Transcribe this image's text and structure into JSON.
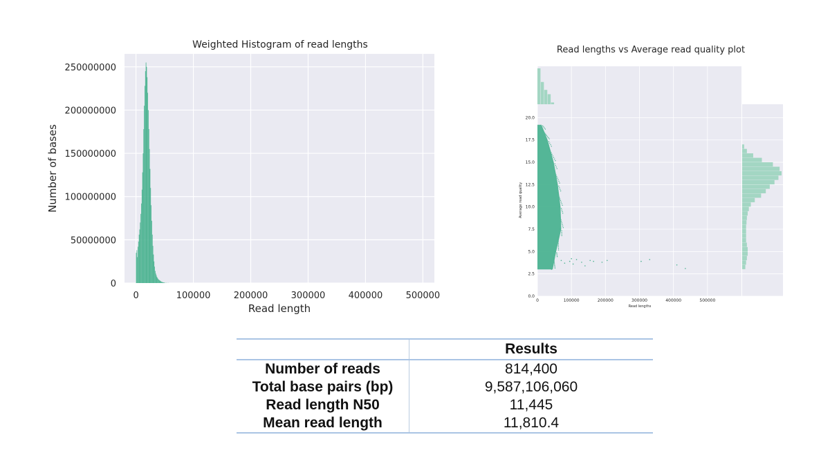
{
  "colors": {
    "bar": "#4cb391",
    "bar_light": "#a3d6c3",
    "plot_bg": "#eaeaf2",
    "grid": "#ffffff"
  },
  "chart_data": [
    {
      "type": "bar",
      "title": "Weighted Histogram of read lengths",
      "xlabel": "Read length",
      "ylabel": "Number of bases",
      "xlim": [
        -20000,
        520000
      ],
      "ylim": [
        0,
        265000000
      ],
      "xticks": [
        0,
        100000,
        200000,
        300000,
        400000,
        500000
      ],
      "xtick_labels": [
        "0",
        "100000",
        "200000",
        "300000",
        "400000",
        "500000"
      ],
      "yticks": [
        0,
        50000000,
        100000000,
        150000000,
        200000000,
        250000000
      ],
      "ytick_labels": [
        "0",
        "50000000",
        "100000000",
        "150000000",
        "200000000",
        "250000000"
      ],
      "grid": true,
      "bin_width": 1000,
      "bins": [
        [
          0,
          35000000
        ],
        [
          1000,
          38000000
        ],
        [
          2000,
          30000000
        ],
        [
          3000,
          42000000
        ],
        [
          4000,
          48000000
        ],
        [
          5000,
          56000000
        ],
        [
          6000,
          62000000
        ],
        [
          7000,
          70000000
        ],
        [
          8000,
          80000000
        ],
        [
          9000,
          92000000
        ],
        [
          10000,
          108000000
        ],
        [
          11000,
          128000000
        ],
        [
          12000,
          150000000
        ],
        [
          13000,
          178000000
        ],
        [
          14000,
          205000000
        ],
        [
          15000,
          228000000
        ],
        [
          16000,
          245000000
        ],
        [
          17000,
          255000000
        ],
        [
          18000,
          250000000
        ],
        [
          19000,
          238000000
        ],
        [
          20000,
          220000000
        ],
        [
          21000,
          200000000
        ],
        [
          22000,
          178000000
        ],
        [
          23000,
          155000000
        ],
        [
          24000,
          132000000
        ],
        [
          25000,
          110000000
        ],
        [
          26000,
          90000000
        ],
        [
          27000,
          72000000
        ],
        [
          28000,
          56000000
        ],
        [
          29000,
          43000000
        ],
        [
          30000,
          33000000
        ],
        [
          31000,
          25000000
        ],
        [
          32000,
          19000000
        ],
        [
          33000,
          14000000
        ],
        [
          34000,
          11000000
        ],
        [
          35000,
          9000000
        ],
        [
          36000,
          7000000
        ],
        [
          37000,
          6000000
        ],
        [
          38000,
          5000000
        ],
        [
          39000,
          4000000
        ],
        [
          40000,
          3500000
        ],
        [
          41000,
          3000000
        ],
        [
          42000,
          2500000
        ],
        [
          43000,
          2000000
        ],
        [
          44000,
          1600000
        ],
        [
          45000,
          1300000
        ],
        [
          46000,
          1000000
        ],
        [
          47000,
          800000
        ],
        [
          48000,
          600000
        ],
        [
          49000,
          500000
        ],
        [
          50000,
          400000
        ],
        [
          52000,
          300000
        ],
        [
          54000,
          200000
        ],
        [
          56000,
          150000
        ]
      ]
    },
    {
      "type": "scatter",
      "title": "Read lengths vs Average read quality plot",
      "xlabel": "Read lengths",
      "ylabel": "Average read quality",
      "xlim": [
        0,
        600000
      ],
      "ylim": [
        0,
        21.5
      ],
      "xticks": [
        0,
        100000,
        200000,
        300000,
        400000,
        500000
      ],
      "xtick_labels": [
        "0",
        "100000",
        "200000",
        "300000",
        "400000",
        "500000"
      ],
      "yticks": [
        0,
        2.5,
        5,
        7.5,
        10,
        12.5,
        15,
        17.5,
        20
      ],
      "ytick_labels": [
        "0.0",
        "2.5",
        "5.0",
        "7.5",
        "10.0",
        "12.5",
        "15.0",
        "17.5",
        "20.0"
      ],
      "grid": true,
      "dense_region": [
        {
          "y": 3,
          "xmax": 45000
        },
        {
          "y": 5,
          "xmax": 55000
        },
        {
          "y": 7.5,
          "xmax": 70000
        },
        {
          "y": 10,
          "xmax": 68000
        },
        {
          "y": 12.5,
          "xmax": 60000
        },
        {
          "y": 15,
          "xmax": 48000
        },
        {
          "y": 17.5,
          "xmax": 30000
        },
        {
          "y": 19.2,
          "xmax": 12000
        }
      ],
      "outliers": [
        [
          70000,
          4.0
        ],
        [
          80000,
          3.7
        ],
        [
          95000,
          3.9
        ],
        [
          105000,
          3.6
        ],
        [
          115000,
          4.1
        ],
        [
          130000,
          3.8
        ],
        [
          155000,
          4.0
        ],
        [
          165000,
          3.9
        ],
        [
          190000,
          3.8
        ],
        [
          205000,
          4.0
        ],
        [
          305000,
          3.9
        ],
        [
          330000,
          4.1
        ],
        [
          410000,
          3.5
        ],
        [
          435000,
          3.1
        ],
        [
          140000,
          3.4
        ],
        [
          100000,
          4.2
        ]
      ],
      "marginal_x": [
        {
          "x": 0,
          "count": 1.0
        },
        {
          "x": 10000,
          "count": 0.62
        },
        {
          "x": 20000,
          "count": 0.4
        },
        {
          "x": 30000,
          "count": 0.28
        },
        {
          "x": 40000,
          "count": 0.05
        }
      ],
      "marginal_y": [
        {
          "y": 3.0,
          "count": 0.08
        },
        {
          "y": 3.5,
          "count": 0.1
        },
        {
          "y": 4.0,
          "count": 0.12
        },
        {
          "y": 4.5,
          "count": 0.14
        },
        {
          "y": 5.0,
          "count": 0.14
        },
        {
          "y": 5.5,
          "count": 0.12
        },
        {
          "y": 6.0,
          "count": 0.1
        },
        {
          "y": 6.5,
          "count": 0.1
        },
        {
          "y": 7.0,
          "count": 0.1
        },
        {
          "y": 7.5,
          "count": 0.1
        },
        {
          "y": 8.0,
          "count": 0.11
        },
        {
          "y": 8.5,
          "count": 0.12
        },
        {
          "y": 9.0,
          "count": 0.14
        },
        {
          "y": 9.5,
          "count": 0.17
        },
        {
          "y": 10.0,
          "count": 0.22
        },
        {
          "y": 10.5,
          "count": 0.32
        },
        {
          "y": 11.0,
          "count": 0.48
        },
        {
          "y": 11.5,
          "count": 0.6
        },
        {
          "y": 12.0,
          "count": 0.7
        },
        {
          "y": 12.5,
          "count": 0.82
        },
        {
          "y": 13.0,
          "count": 0.92
        },
        {
          "y": 13.5,
          "count": 1.0
        },
        {
          "y": 14.0,
          "count": 0.95
        },
        {
          "y": 14.5,
          "count": 0.78
        },
        {
          "y": 15.0,
          "count": 0.5
        },
        {
          "y": 15.5,
          "count": 0.28
        },
        {
          "y": 16.0,
          "count": 0.12
        },
        {
          "y": 16.5,
          "count": 0.05
        }
      ]
    },
    {
      "type": "table",
      "header": [
        "",
        "Results"
      ],
      "rows": [
        [
          "Number of reads",
          "814,400"
        ],
        [
          "Total base pairs (bp)",
          "9,587,106,060"
        ],
        [
          "Read length N50",
          "11,445"
        ],
        [
          "Mean read length",
          "11,810.4"
        ]
      ]
    }
  ]
}
